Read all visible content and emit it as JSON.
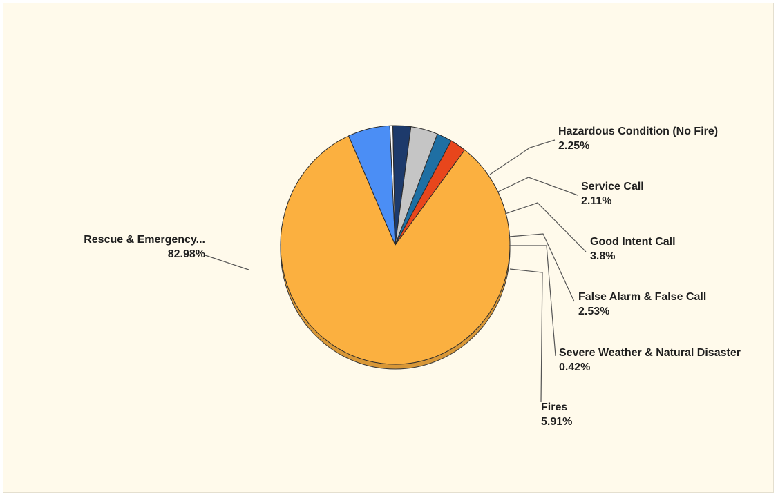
{
  "chart_data": {
    "type": "pie",
    "title": "",
    "slices": [
      {
        "label": "Rescue & Emergency...",
        "value": 82.98,
        "display": "82.98%",
        "color": "#fbb040"
      },
      {
        "label": "Hazardous Condition (No Fire)",
        "value": 2.25,
        "display": "2.25%",
        "color": "#e8461c"
      },
      {
        "label": "Service Call",
        "value": 2.11,
        "display": "2.11%",
        "color": "#1f6fa3"
      },
      {
        "label": "Good Intent Call",
        "value": 3.8,
        "display": "3.8%",
        "color": "#c5c5c5"
      },
      {
        "label": "False Alarm & False Call",
        "value": 2.53,
        "display": "2.53%",
        "color": "#1d3a6b"
      },
      {
        "label": "Severe Weather & Natural Disaster",
        "value": 0.42,
        "display": "0.42%",
        "color": "#ffffff"
      },
      {
        "label": "Fires",
        "value": 5.91,
        "display": "5.91%",
        "color": "#4b8ef5"
      }
    ],
    "style": "3d-pie",
    "legend": "none (leader-line labels)"
  }
}
